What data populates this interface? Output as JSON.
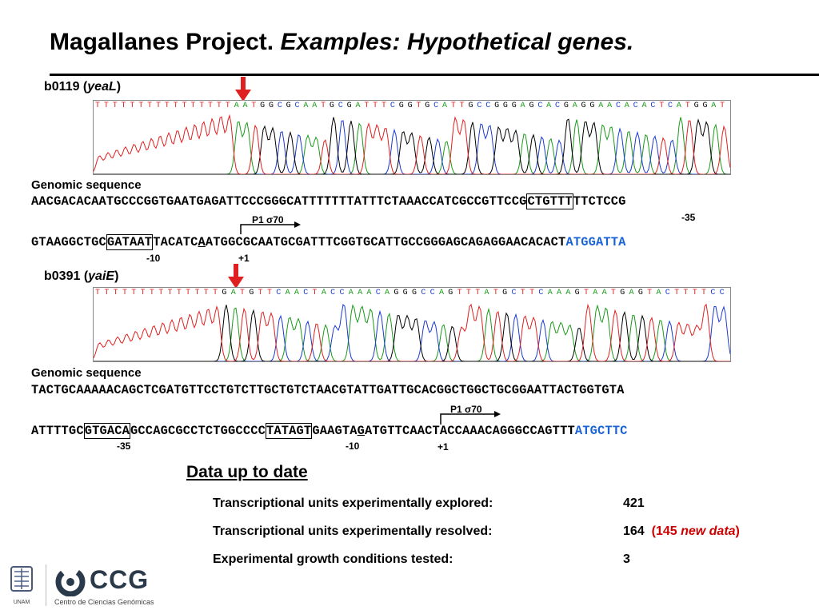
{
  "title": {
    "main": "Magallanes Project.",
    "italic": "Examples: Hypothetical genes."
  },
  "gene1": {
    "id": "b0119 (",
    "name": "yeaL",
    "close": ")",
    "bases": "TTTTTTTTTTTTTTTTAATGGCGCAATGCGATTTCGGTGCATTGCCGGGAGCACGAGGAACACACTCATGGAT",
    "genomic_label": "Genomic sequence",
    "line1": "AACGACACAATGCCCGGTGAATGAGATTCCCGGGCATTTTTTTATTTCTAAACCATCGCCGTTCCG",
    "line1_box": "CTGTTT",
    "line1_end": "TTCTCCG",
    "line2_a": "GTAAGGCTGC",
    "line2_box": "GATAAT",
    "line2_b": "TACATC",
    "line2_ul": "A",
    "line2_c": "ATGGCGCAATGCGATTTCGGTGCATTGCCGGGAGCAGAGGAACACACT",
    "line2_blue": "ATGGATTA",
    "minus35": "-35",
    "minus10": "-10",
    "plus1": "+1",
    "promoter": "P1 σ70"
  },
  "gene2": {
    "id": "b0391 (",
    "name": "yaiE",
    "close": ")",
    "bases": "TTTTTTTTTTTTTTGATGTTCAACTACCAAACAGGGCCAGTTTATGCTTCAAAGTAATGAGTACTTTTCC",
    "genomic_label": "Genomic sequence",
    "line1": "TACTGCAAAAACAGCTCGATGTTCCTGTCTTGCTGTCTAACGTATTGATTGCACGGCTGGCTGCGGAATTACTGGTGTA",
    "line2_a": "ATTTTGC",
    "line2_box1": "GTGACA",
    "line2_b": "GCCAGCGCCTCTGGCCCC",
    "line2_box2": "TATAGT",
    "line2_c": "GAAGTA",
    "line2_ul": "G",
    "line2_d": "ATGTTCAACTACCAAACAGGGCCAGTTT",
    "line2_blue": "ATGCTTC",
    "minus35": "-35",
    "minus10": "-10",
    "plus1": "+1",
    "promoter": "P1 σ70"
  },
  "stats": {
    "heading": "Data up to date",
    "rows": [
      {
        "label": "Transcriptional units experimentally explored:",
        "value": "421"
      },
      {
        "label": "Transcriptional units experimentally resolved:",
        "value": "164",
        "note_a": "(145 ",
        "note_b": "new data",
        "note_c": ")"
      },
      {
        "label": "Experimental growth conditions tested:",
        "value": "3"
      }
    ]
  },
  "logos": {
    "unam": "UNAM",
    "ccg": "CCG",
    "ccg_full": "Centro de Ciencias Genómicas"
  },
  "colors": {
    "arrow": "#e02020",
    "blue": "#1a63d6",
    "red": "#cc0000",
    "trace_a": "#1a9a1a",
    "trace_c": "#1a3ad0",
    "trace_g": "#000000",
    "trace_t": "#e02020"
  }
}
